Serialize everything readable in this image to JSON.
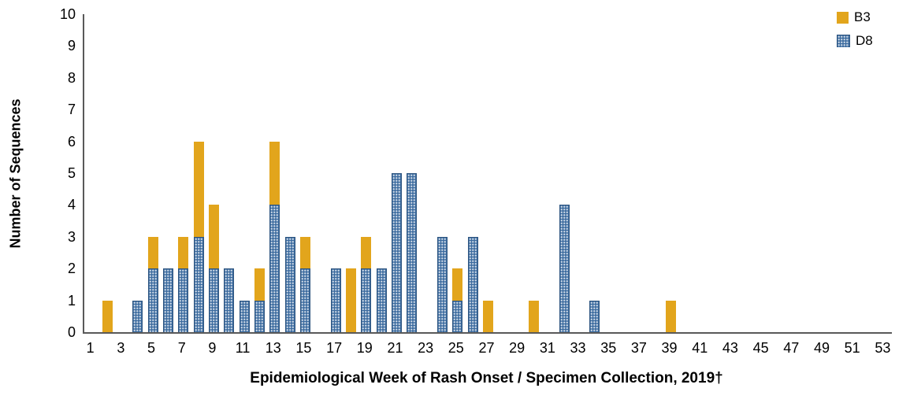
{
  "chart_data": {
    "type": "bar",
    "stacked": true,
    "title": "",
    "xlabel": "Epidemiological Week of Rash Onset / Specimen Collection, 2019†",
    "ylabel": "Number of Sequences",
    "ylim": [
      0,
      10
    ],
    "y_tick_step": 1,
    "x_weeks_range": [
      1,
      53
    ],
    "x_tick_labels": [
      1,
      3,
      5,
      7,
      9,
      11,
      13,
      15,
      17,
      19,
      21,
      23,
      25,
      27,
      29,
      31,
      33,
      35,
      37,
      39,
      41,
      43,
      45,
      47,
      49,
      51,
      53
    ],
    "grid": false,
    "legend_position": "top-right",
    "series": [
      {
        "name": "B3",
        "color": "#E2A51C",
        "pattern": "solid",
        "stack_order": "top"
      },
      {
        "name": "D8",
        "color": "#3E6DA0",
        "pattern": "dots",
        "stack_order": "bottom"
      }
    ],
    "bars": [
      {
        "week": 2,
        "D8": 0,
        "B3": 1
      },
      {
        "week": 4,
        "D8": 1,
        "B3": 0
      },
      {
        "week": 5,
        "D8": 2,
        "B3": 1
      },
      {
        "week": 6,
        "D8": 2,
        "B3": 0
      },
      {
        "week": 7,
        "D8": 2,
        "B3": 1
      },
      {
        "week": 8,
        "D8": 3,
        "B3": 3
      },
      {
        "week": 9,
        "D8": 2,
        "B3": 2
      },
      {
        "week": 10,
        "D8": 2,
        "B3": 0
      },
      {
        "week": 11,
        "D8": 1,
        "B3": 0
      },
      {
        "week": 12,
        "D8": 1,
        "B3": 1
      },
      {
        "week": 13,
        "D8": 4,
        "B3": 2
      },
      {
        "week": 14,
        "D8": 3,
        "B3": 0
      },
      {
        "week": 15,
        "D8": 2,
        "B3": 1
      },
      {
        "week": 17,
        "D8": 2,
        "B3": 0
      },
      {
        "week": 18,
        "D8": 0,
        "B3": 2
      },
      {
        "week": 19,
        "D8": 2,
        "B3": 1
      },
      {
        "week": 20,
        "D8": 2,
        "B3": 0
      },
      {
        "week": 21,
        "D8": 5,
        "B3": 0
      },
      {
        "week": 22,
        "D8": 5,
        "B3": 0
      },
      {
        "week": 24,
        "D8": 3,
        "B3": 0
      },
      {
        "week": 25,
        "D8": 1,
        "B3": 1
      },
      {
        "week": 26,
        "D8": 3,
        "B3": 0
      },
      {
        "week": 27,
        "D8": 0,
        "B3": 1
      },
      {
        "week": 30,
        "D8": 0,
        "B3": 1
      },
      {
        "week": 32,
        "D8": 4,
        "B3": 0
      },
      {
        "week": 34,
        "D8": 1,
        "B3": 0
      },
      {
        "week": 39,
        "D8": 0,
        "B3": 1
      }
    ]
  }
}
